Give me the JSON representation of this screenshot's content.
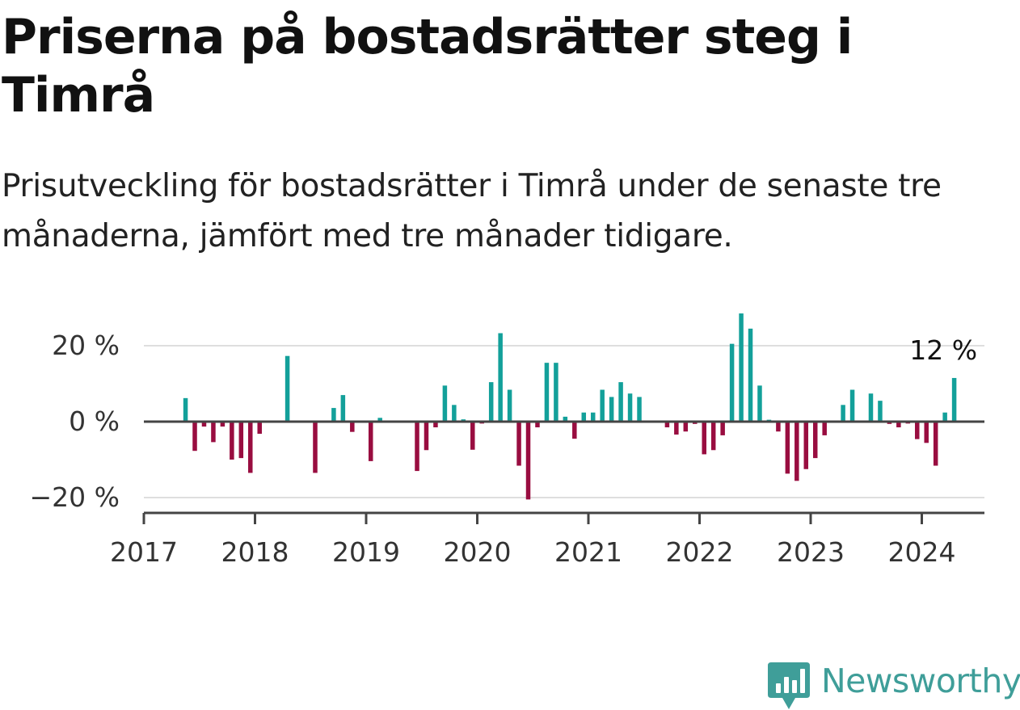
{
  "title": "Priserna på bostadsrätter steg i Timrå",
  "subtitle": "Prisutveckling för bostadsrätter i Timrå under de senaste tre månaderna, jämfört med tre månader tidigare.",
  "brand": "Newsworthy",
  "colors": {
    "positive": "#13a09a",
    "negative": "#990d40",
    "brand": "#3f9e99"
  },
  "chart_data": {
    "type": "bar",
    "ylim": [
      -24,
      30
    ],
    "yticks": [
      {
        "value": 20,
        "label": "20 %"
      },
      {
        "value": 0,
        "label": "0 %"
      },
      {
        "value": -20,
        "label": "−20 %"
      }
    ],
    "xlim": [
      2017.0,
      2017.0,
      2024.58
    ],
    "xticks": [
      "2017",
      "2018",
      "2019",
      "2020",
      "2021",
      "2022",
      "2023",
      "2024"
    ],
    "grid": true,
    "annotation": {
      "label": "12 %",
      "x": "2024-03",
      "value": 12
    },
    "series": [
      {
        "values": [
          {
            "x": "2017-05",
            "y": 6.2
          },
          {
            "x": "2017-06",
            "y": -7.7
          },
          {
            "x": "2017-07",
            "y": -1.3
          },
          {
            "x": "2017-08",
            "y": -5.4
          },
          {
            "x": "2017-09",
            "y": -1.3
          },
          {
            "x": "2017-10",
            "y": -10.0
          },
          {
            "x": "2017-11",
            "y": -9.6
          },
          {
            "x": "2017-12",
            "y": -13.5
          },
          {
            "x": "2018-01",
            "y": -3.2
          },
          {
            "x": "2018-02",
            "y": 0.0
          },
          {
            "x": "2018-03",
            "y": 0.0
          },
          {
            "x": "2018-04",
            "y": 17.3
          },
          {
            "x": "2018-05",
            "y": 0.0
          },
          {
            "x": "2018-06",
            "y": 0.0
          },
          {
            "x": "2018-07",
            "y": -13.5
          },
          {
            "x": "2018-08",
            "y": 0.0
          },
          {
            "x": "2018-09",
            "y": 3.6
          },
          {
            "x": "2018-10",
            "y": 7.0
          },
          {
            "x": "2018-11",
            "y": -2.7
          },
          {
            "x": "2018-12",
            "y": 0.0
          },
          {
            "x": "2019-01",
            "y": -10.4
          },
          {
            "x": "2019-02",
            "y": 1.0
          },
          {
            "x": "2019-03",
            "y": 0.0
          },
          {
            "x": "2019-04",
            "y": 0.0
          },
          {
            "x": "2019-05",
            "y": 0.0
          },
          {
            "x": "2019-06",
            "y": -13.0
          },
          {
            "x": "2019-07",
            "y": -7.5
          },
          {
            "x": "2019-08",
            "y": -1.5
          },
          {
            "x": "2019-09",
            "y": 9.5
          },
          {
            "x": "2019-10",
            "y": 4.4
          },
          {
            "x": "2019-11",
            "y": 0.6
          },
          {
            "x": "2019-12",
            "y": -7.4
          },
          {
            "x": "2020-01",
            "y": -0.5
          },
          {
            "x": "2020-02",
            "y": 10.4
          },
          {
            "x": "2020-03",
            "y": 23.3
          },
          {
            "x": "2020-04",
            "y": 8.4
          },
          {
            "x": "2020-05",
            "y": -11.6
          },
          {
            "x": "2020-06",
            "y": -20.5
          },
          {
            "x": "2020-07",
            "y": -1.5
          },
          {
            "x": "2020-08",
            "y": 15.5
          },
          {
            "x": "2020-09",
            "y": 15.5
          },
          {
            "x": "2020-10",
            "y": 1.3
          },
          {
            "x": "2020-11",
            "y": -4.5
          },
          {
            "x": "2020-12",
            "y": 2.4
          },
          {
            "x": "2021-01",
            "y": 2.4
          },
          {
            "x": "2021-02",
            "y": 8.4
          },
          {
            "x": "2021-03",
            "y": 6.5
          },
          {
            "x": "2021-04",
            "y": 10.4
          },
          {
            "x": "2021-05",
            "y": 7.4
          },
          {
            "x": "2021-06",
            "y": 6.5
          },
          {
            "x": "2021-07",
            "y": 0.0
          },
          {
            "x": "2021-08",
            "y": 0.0
          },
          {
            "x": "2021-09",
            "y": -1.5
          },
          {
            "x": "2021-10",
            "y": -3.4
          },
          {
            "x": "2021-11",
            "y": -2.6
          },
          {
            "x": "2021-12",
            "y": -0.6
          },
          {
            "x": "2022-01",
            "y": -8.6
          },
          {
            "x": "2022-02",
            "y": -7.5
          },
          {
            "x": "2022-03",
            "y": -3.6
          },
          {
            "x": "2022-04",
            "y": 20.5
          },
          {
            "x": "2022-05",
            "y": 28.5
          },
          {
            "x": "2022-06",
            "y": 24.5
          },
          {
            "x": "2022-07",
            "y": 9.5
          },
          {
            "x": "2022-08",
            "y": 0.5
          },
          {
            "x": "2022-09",
            "y": -2.6
          },
          {
            "x": "2022-10",
            "y": -13.7
          },
          {
            "x": "2022-11",
            "y": -15.6
          },
          {
            "x": "2022-12",
            "y": -12.5
          },
          {
            "x": "2023-01",
            "y": -9.6
          },
          {
            "x": "2023-02",
            "y": -3.6
          },
          {
            "x": "2023-03",
            "y": 0.0
          },
          {
            "x": "2023-04",
            "y": 4.4
          },
          {
            "x": "2023-05",
            "y": 8.4
          },
          {
            "x": "2023-06",
            "y": 0.0
          },
          {
            "x": "2023-07",
            "y": 7.4
          },
          {
            "x": "2023-08",
            "y": 5.5
          },
          {
            "x": "2023-09",
            "y": -0.6
          },
          {
            "x": "2023-10",
            "y": -1.5
          },
          {
            "x": "2023-11",
            "y": -0.5
          },
          {
            "x": "2023-12",
            "y": -4.6
          },
          {
            "x": "2024-01",
            "y": -5.6
          },
          {
            "x": "2024-02",
            "y": -11.6
          },
          {
            "x": "2024-03",
            "y": 2.4
          },
          {
            "x": "2024-04",
            "y": 11.5
          }
        ]
      }
    ]
  }
}
